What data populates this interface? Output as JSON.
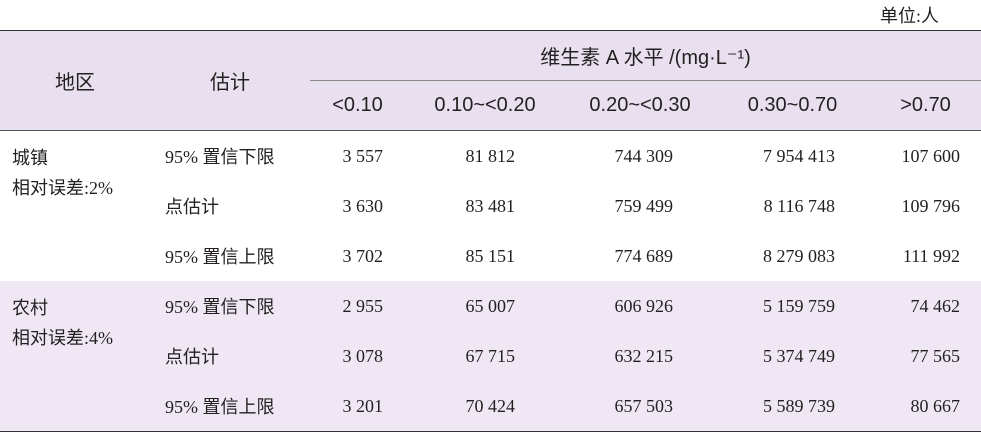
{
  "unit_note": "单位:人",
  "table": {
    "header": {
      "region": "地区",
      "estimate": "估计",
      "group": "维生素 A 水平 /(mg·L⁻¹)",
      "levels": [
        "<0.10",
        "0.10~<0.20",
        "0.20~<0.30",
        "0.30~0.70",
        ">0.70"
      ]
    },
    "groups": [
      {
        "region": "城镇",
        "error_note": "相对误差:2%",
        "rows": [
          {
            "estimate": "95% 置信下限",
            "values": [
              "3 557",
              "81 812",
              "744 309",
              "7 954 413",
              "107 600"
            ]
          },
          {
            "estimate": "点估计",
            "values": [
              "3 630",
              "83 481",
              "759 499",
              "8 116 748",
              "109 796"
            ]
          },
          {
            "estimate": "95% 置信上限",
            "values": [
              "3 702",
              "85 151",
              "774 689",
              "8 279 083",
              "111 992"
            ]
          }
        ]
      },
      {
        "region": "农村",
        "error_note": "相对误差:4%",
        "rows": [
          {
            "estimate": "95% 置信下限",
            "values": [
              "2 955",
              "65 007",
              "606 926",
              "5 159 759",
              "74 462"
            ]
          },
          {
            "estimate": "点估计",
            "values": [
              "3 078",
              "67 715",
              "632 215",
              "5 374 749",
              "77 565"
            ]
          },
          {
            "estimate": "95% 置信上限",
            "values": [
              "3 201",
              "70 424",
              "657 503",
              "5 589 739",
              "80 667"
            ]
          }
        ]
      }
    ]
  }
}
